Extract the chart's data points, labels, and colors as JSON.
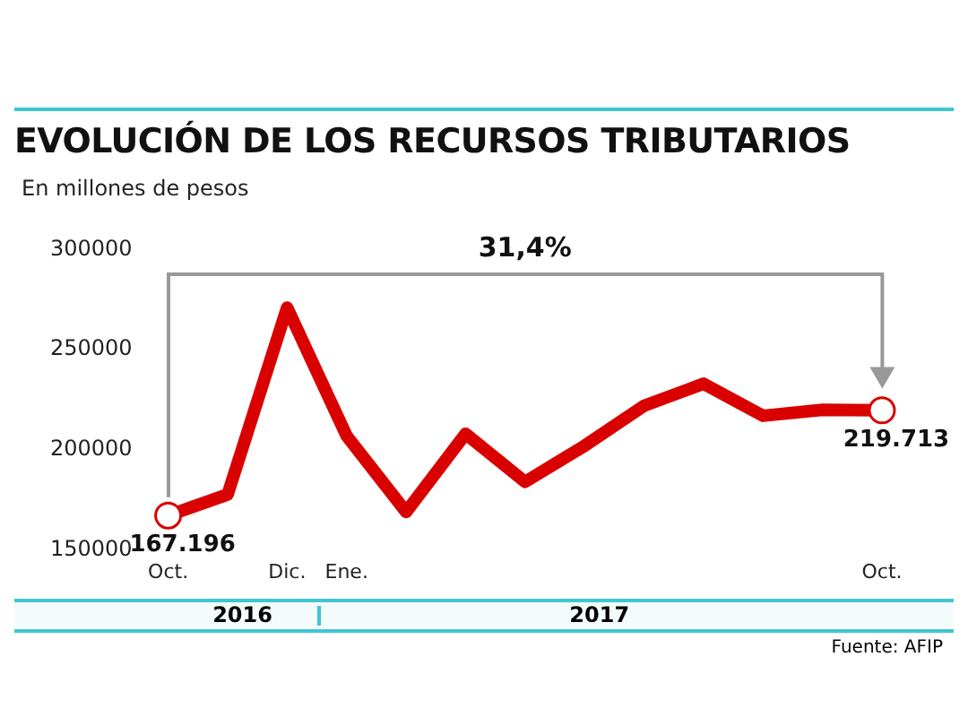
{
  "chart_data": {
    "type": "line",
    "title": "EVOLUCIÓN DE LOS RECURSOS TRIBUTARIOS",
    "ylabel": "En millones de pesos",
    "categories": [
      "Oct.",
      null,
      "Dic.",
      "Ene.",
      null,
      null,
      null,
      null,
      null,
      null,
      null,
      null,
      "Oct."
    ],
    "series": [
      {
        "color": "#d90000",
        "values": [
          167196,
          177700,
          271000,
          207000,
          169000,
          208000,
          184000,
          202000,
          222000,
          233000,
          217000,
          220000,
          219713
        ],
        "value_labels": [
          "167.196",
          null,
          null,
          null,
          null,
          null,
          null,
          null,
          null,
          null,
          null,
          null,
          "219.713"
        ]
      }
    ],
    "ylim": [
      150000,
      300000
    ],
    "yticks": [
      150000,
      200000,
      250000,
      300000
    ],
    "grid": false,
    "legend": false,
    "annotations": [
      "31,4%",
      "2016",
      "2017",
      "Fuente: AFIP"
    ]
  }
}
